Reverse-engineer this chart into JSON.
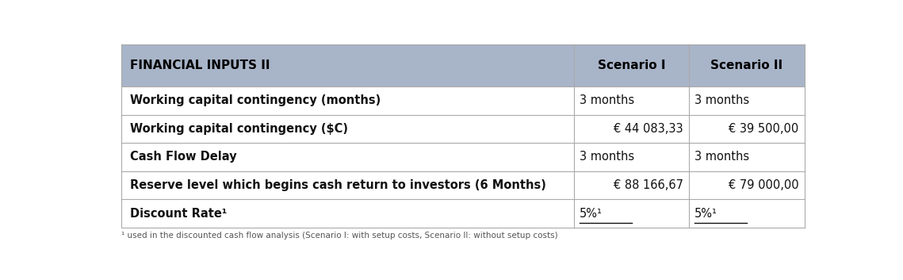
{
  "header_bg_color": "#a8b4c8",
  "header_text_color": "#000000",
  "row_bg_color": "#ffffff",
  "border_color": "#aaaaaa",
  "header_label": "FINANCIAL INPUTS II",
  "col1_label": "Scenario I",
  "col2_label": "Scenario II",
  "rows": [
    {
      "label": "Working capital contingency (months)",
      "col1": "3 months",
      "col2": "3 months",
      "col1_align": "left",
      "col2_align": "left",
      "underline": false
    },
    {
      "label": "Working capital contingency ($C)",
      "col1": "€ 44 083,33",
      "col2": "€ 39 500,00",
      "col1_align": "right",
      "col2_align": "right",
      "underline": false
    },
    {
      "label": "Cash Flow Delay",
      "col1": "3 months",
      "col2": "3 months",
      "col1_align": "left",
      "col2_align": "left",
      "underline": false
    },
    {
      "label": "Reserve level which begins cash return to investors (6 Months)",
      "col1": "€ 88 166,67",
      "col2": "€ 79 000,00",
      "col1_align": "right",
      "col2_align": "right",
      "underline": false
    },
    {
      "label": "Discount Rate¹",
      "col1": "5%¹",
      "col2": "5%¹",
      "col1_align": "left",
      "col2_align": "left",
      "underline": true
    }
  ],
  "footer_text": "¹ used in the discounted cash flow analysis (Scenario I: with setup costs, Scenario II: without setup costs)",
  "figsize": [
    11.39,
    3.53
  ],
  "dpi": 100
}
